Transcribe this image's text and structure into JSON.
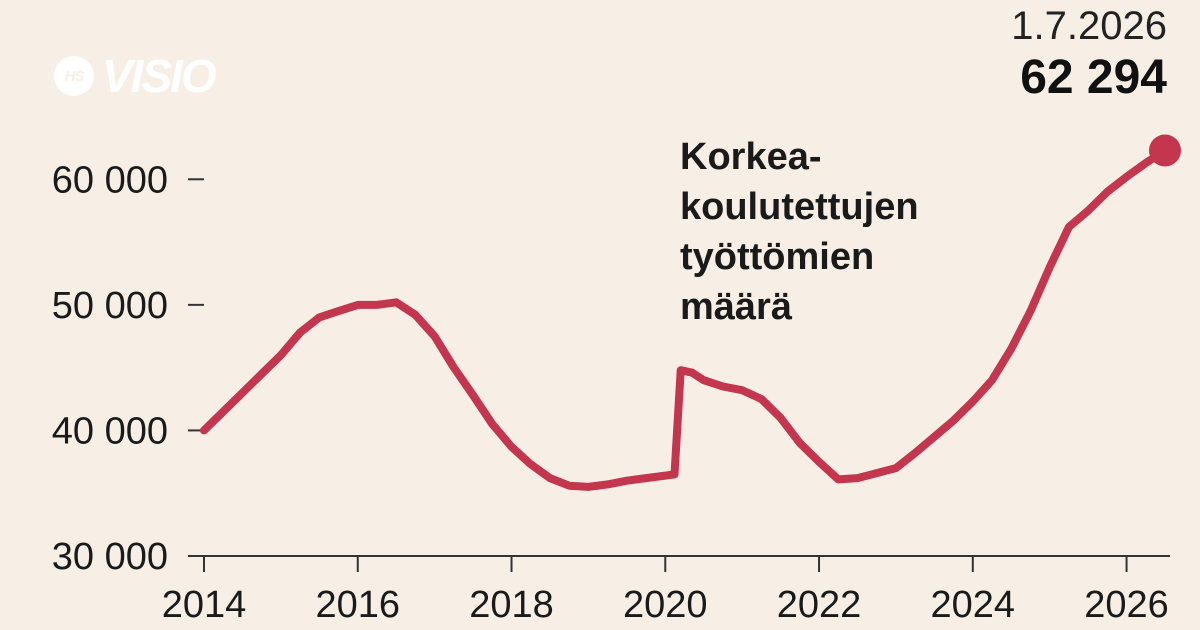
{
  "brand": {
    "badge": "HS",
    "name": "VISIO"
  },
  "latest": {
    "date": "1.7.2026",
    "value": "62 294"
  },
  "colors": {
    "line": "#c4354e",
    "background": "#f7efe6",
    "axis": "#333333",
    "logo": "#ffffff"
  },
  "annotation": [
    "Korkea-",
    "koulutettujen",
    "työttömien",
    "määrä"
  ],
  "chart_data": {
    "type": "line",
    "title": "",
    "xlabel": "",
    "ylabel": "",
    "xlim": [
      2014.0,
      2026.5
    ],
    "ylim": [
      30000,
      65000
    ],
    "x_ticks": [
      2014,
      2016,
      2018,
      2020,
      2022,
      2024,
      2026
    ],
    "x_tick_labels": [
      "2014",
      "2016",
      "2018",
      "2020",
      "2022",
      "2024",
      "2026"
    ],
    "y_ticks": [
      30000,
      40000,
      50000,
      60000
    ],
    "y_tick_labels": [
      "30 000",
      "40 000",
      "50 000",
      "60 000"
    ],
    "grid": false,
    "legend": "none",
    "series": [
      {
        "x": [
          2014.0,
          2014.25,
          2014.5,
          2014.75,
          2015.0,
          2015.25,
          2015.5,
          2015.75,
          2016.0,
          2016.25,
          2016.5,
          2016.75,
          2017.0,
          2017.25,
          2017.5,
          2017.75,
          2018.0,
          2018.25,
          2018.5,
          2018.75,
          2019.0,
          2019.25,
          2019.5,
          2019.75,
          2020.0,
          2020.12,
          2020.2,
          2020.35,
          2020.5,
          2020.75,
          2021.0,
          2021.25,
          2021.5,
          2021.75,
          2022.0,
          2022.25,
          2022.5,
          2022.75,
          2023.0,
          2023.25,
          2023.5,
          2023.75,
          2024.0,
          2024.25,
          2024.5,
          2024.75,
          2025.0,
          2025.25,
          2025.5,
          2025.75,
          2026.0,
          2026.25,
          2026.5
        ],
        "y": [
          40000,
          41500,
          43000,
          44500,
          46000,
          47800,
          49000,
          49500,
          50000,
          50000,
          50200,
          49200,
          47500,
          45000,
          42800,
          40500,
          38700,
          37300,
          36200,
          35600,
          35500,
          35700,
          36000,
          36200,
          36400,
          36500,
          44800,
          44600,
          44000,
          43500,
          43200,
          42500,
          41000,
          39000,
          37500,
          36100,
          36200,
          36600,
          37000,
          38200,
          39500,
          40800,
          42300,
          44000,
          46500,
          49500,
          53000,
          56200,
          57500,
          59000,
          60200,
          61300,
          62294
        ]
      }
    ]
  }
}
